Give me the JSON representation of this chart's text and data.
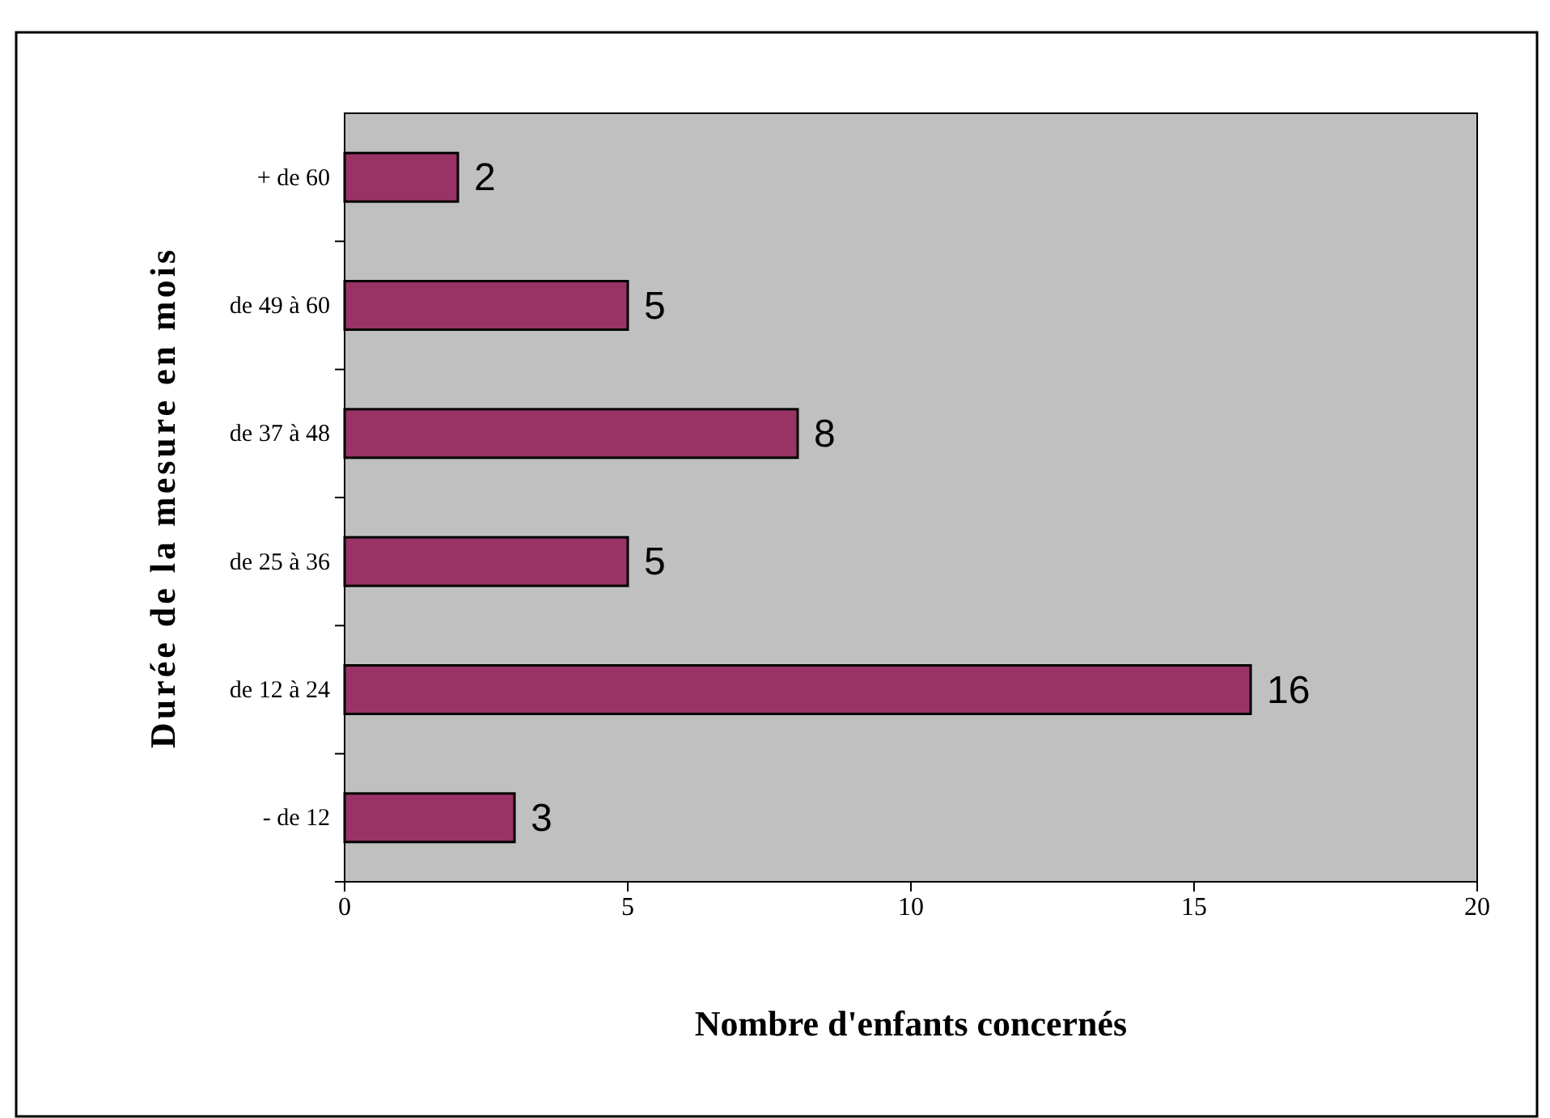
{
  "chart_data": {
    "type": "bar",
    "orientation": "horizontal",
    "xlabel": "Nombre d'enfants concernés",
    "ylabel": "Durée de la mesure en mois",
    "categories": [
      "+ de 60",
      "de 49 à 60",
      "de 37 à 48",
      "de 25 à 36",
      "de 12 à 24",
      "- de 12"
    ],
    "values": [
      2,
      5,
      8,
      5,
      16,
      3
    ],
    "color": "#993366",
    "xlim": [
      0,
      20
    ],
    "xticks": [
      0,
      5,
      10,
      15,
      20
    ],
    "data_labels": true
  }
}
